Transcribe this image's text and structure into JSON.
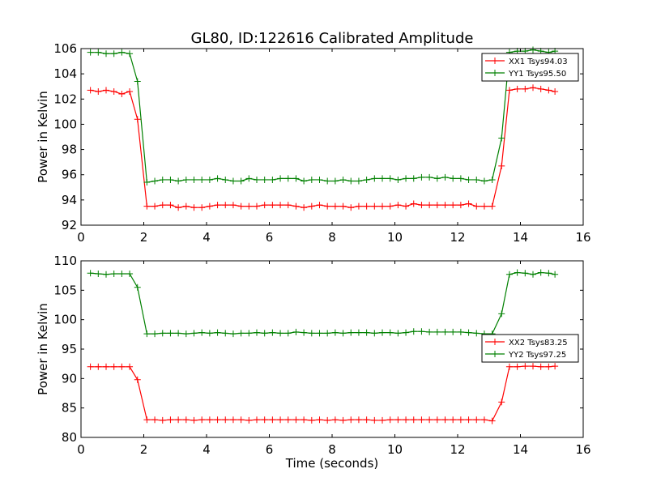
{
  "title": "GL80, ID:122616 Calibrated Amplitude",
  "chart_data": [
    {
      "type": "line",
      "title": "GL80, ID:122616 Calibrated Amplitude",
      "xlabel": "",
      "ylabel": "Power in Kelvin",
      "xlim": [
        0,
        16
      ],
      "ylim": [
        92,
        106
      ],
      "xticks": [
        "0",
        "2",
        "4",
        "6",
        "8",
        "10",
        "12",
        "14",
        "16"
      ],
      "yticks": [
        "92",
        "94",
        "96",
        "98",
        "100",
        "102",
        "104",
        "106"
      ],
      "grid": false,
      "legend_position": "top-right",
      "x": [
        0.3,
        0.55,
        0.8,
        1.05,
        1.3,
        1.55,
        1.8,
        2.1,
        2.35,
        2.6,
        2.85,
        3.1,
        3.35,
        3.6,
        3.85,
        4.1,
        4.35,
        4.6,
        4.85,
        5.1,
        5.35,
        5.6,
        5.85,
        6.1,
        6.35,
        6.6,
        6.85,
        7.1,
        7.35,
        7.6,
        7.85,
        8.1,
        8.35,
        8.6,
        8.85,
        9.1,
        9.35,
        9.6,
        9.85,
        10.1,
        10.35,
        10.6,
        10.85,
        11.1,
        11.35,
        11.6,
        11.85,
        12.1,
        12.35,
        12.6,
        12.85,
        13.1,
        13.4,
        13.65,
        13.9,
        14.15,
        14.4,
        14.65,
        14.9,
        15.1
      ],
      "series": [
        {
          "name": "XX1 Tsys94.03",
          "color": "#ff0000",
          "values": [
            102.7,
            102.6,
            102.7,
            102.6,
            102.4,
            102.6,
            100.4,
            93.5,
            93.5,
            93.6,
            93.6,
            93.4,
            93.5,
            93.4,
            93.4,
            93.5,
            93.6,
            93.6,
            93.6,
            93.5,
            93.5,
            93.5,
            93.6,
            93.6,
            93.6,
            93.6,
            93.5,
            93.4,
            93.5,
            93.6,
            93.5,
            93.5,
            93.5,
            93.4,
            93.5,
            93.5,
            93.5,
            93.5,
            93.5,
            93.6,
            93.5,
            93.7,
            93.6,
            93.6,
            93.6,
            93.6,
            93.6,
            93.6,
            93.7,
            93.5,
            93.5,
            93.5,
            96.7,
            102.7,
            102.8,
            102.8,
            102.9,
            102.8,
            102.7,
            102.6
          ]
        },
        {
          "name": "YY1 Tsys95.50",
          "color": "#008000",
          "values": [
            105.7,
            105.7,
            105.6,
            105.6,
            105.7,
            105.6,
            103.4,
            95.4,
            95.5,
            95.6,
            95.6,
            95.5,
            95.6,
            95.6,
            95.6,
            95.6,
            95.7,
            95.6,
            95.5,
            95.5,
            95.7,
            95.6,
            95.6,
            95.6,
            95.7,
            95.7,
            95.7,
            95.5,
            95.6,
            95.6,
            95.5,
            95.5,
            95.6,
            95.5,
            95.5,
            95.6,
            95.7,
            95.7,
            95.7,
            95.6,
            95.7,
            95.7,
            95.8,
            95.8,
            95.7,
            95.8,
            95.7,
            95.7,
            95.6,
            95.6,
            95.5,
            95.6,
            98.9,
            105.7,
            105.8,
            105.8,
            105.9,
            105.8,
            105.7,
            105.8
          ]
        }
      ]
    },
    {
      "type": "line",
      "title": "",
      "xlabel": "Time (seconds)",
      "ylabel": "Power in Kelvin",
      "xlim": [
        0,
        16
      ],
      "ylim": [
        80,
        110
      ],
      "xticks": [
        "0",
        "2",
        "4",
        "6",
        "8",
        "10",
        "12",
        "14",
        "16"
      ],
      "yticks": [
        "80",
        "85",
        "90",
        "95",
        "100",
        "105",
        "110"
      ],
      "grid": false,
      "legend_position": "center-right",
      "x": [
        0.3,
        0.55,
        0.8,
        1.05,
        1.3,
        1.55,
        1.8,
        2.1,
        2.35,
        2.6,
        2.85,
        3.1,
        3.35,
        3.6,
        3.85,
        4.1,
        4.35,
        4.6,
        4.85,
        5.1,
        5.35,
        5.6,
        5.85,
        6.1,
        6.35,
        6.6,
        6.85,
        7.1,
        7.35,
        7.6,
        7.85,
        8.1,
        8.35,
        8.6,
        8.85,
        9.1,
        9.35,
        9.6,
        9.85,
        10.1,
        10.35,
        10.6,
        10.85,
        11.1,
        11.35,
        11.6,
        11.85,
        12.1,
        12.35,
        12.6,
        12.85,
        13.1,
        13.4,
        13.65,
        13.9,
        14.15,
        14.4,
        14.65,
        14.9,
        15.1
      ],
      "series": [
        {
          "name": "XX2 Tsys83.25",
          "color": "#ff0000",
          "values": [
            92.0,
            92.0,
            92.0,
            92.0,
            92.0,
            92.0,
            89.8,
            83.0,
            83.0,
            82.9,
            83.0,
            83.0,
            83.0,
            82.9,
            83.0,
            83.0,
            83.0,
            83.0,
            83.0,
            83.0,
            82.9,
            83.0,
            83.0,
            83.0,
            83.0,
            83.0,
            83.0,
            83.0,
            82.9,
            83.0,
            82.9,
            83.0,
            82.9,
            83.0,
            83.0,
            83.0,
            82.9,
            82.9,
            83.0,
            83.0,
            83.0,
            83.0,
            83.0,
            83.0,
            83.0,
            83.0,
            83.0,
            83.0,
            83.0,
            83.0,
            83.0,
            82.8,
            86.0,
            92.0,
            92.0,
            92.1,
            92.1,
            92.0,
            92.0,
            92.1
          ]
        },
        {
          "name": "YY2 Tsys97.25",
          "color": "#008000",
          "values": [
            107.9,
            107.8,
            107.7,
            107.8,
            107.8,
            107.8,
            105.5,
            97.6,
            97.6,
            97.7,
            97.7,
            97.7,
            97.6,
            97.7,
            97.8,
            97.7,
            97.8,
            97.7,
            97.6,
            97.7,
            97.7,
            97.8,
            97.7,
            97.8,
            97.7,
            97.7,
            97.9,
            97.8,
            97.7,
            97.7,
            97.7,
            97.8,
            97.7,
            97.8,
            97.8,
            97.8,
            97.7,
            97.8,
            97.8,
            97.7,
            97.8,
            98.0,
            98.0,
            97.9,
            97.9,
            97.9,
            97.9,
            97.9,
            97.8,
            97.7,
            97.6,
            97.6,
            101.0,
            107.7,
            108.0,
            107.9,
            107.7,
            108.0,
            107.9,
            107.7
          ]
        }
      ]
    }
  ]
}
